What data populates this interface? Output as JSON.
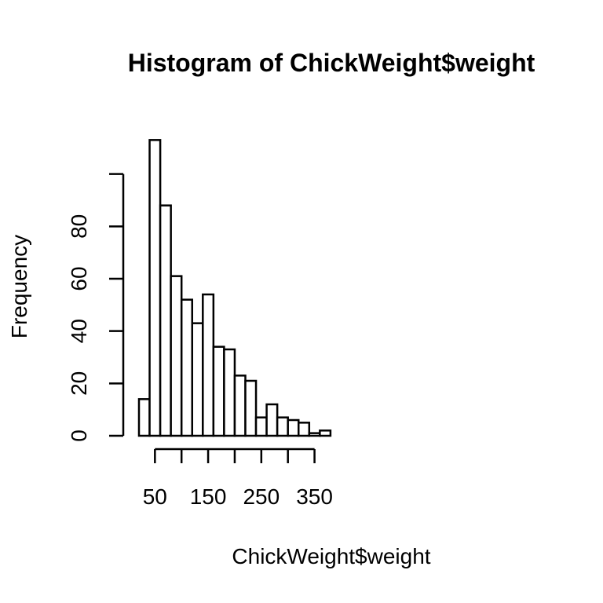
{
  "chart_data": {
    "type": "bar",
    "title": "Histogram of ChickWeight$weight",
    "xlabel": "ChickWeight$weight",
    "ylabel": "Frequency",
    "bin_edges": [
      20,
      40,
      60,
      80,
      100,
      120,
      140,
      160,
      180,
      200,
      220,
      240,
      260,
      280,
      300,
      320,
      340,
      360,
      380
    ],
    "values": [
      14,
      113,
      88,
      61,
      52,
      43,
      54,
      34,
      33,
      23,
      21,
      7,
      12,
      7,
      6,
      5,
      1,
      2
    ],
    "x_ticks": [
      50,
      150,
      250,
      350
    ],
    "x_tick_labels": [
      "50",
      "150",
      "250",
      "350"
    ],
    "y_ticks": [
      0,
      20,
      40,
      60,
      80,
      100
    ],
    "y_tick_labels": [
      "0",
      "20",
      "40",
      "60",
      "80",
      ""
    ],
    "grid": false
  }
}
